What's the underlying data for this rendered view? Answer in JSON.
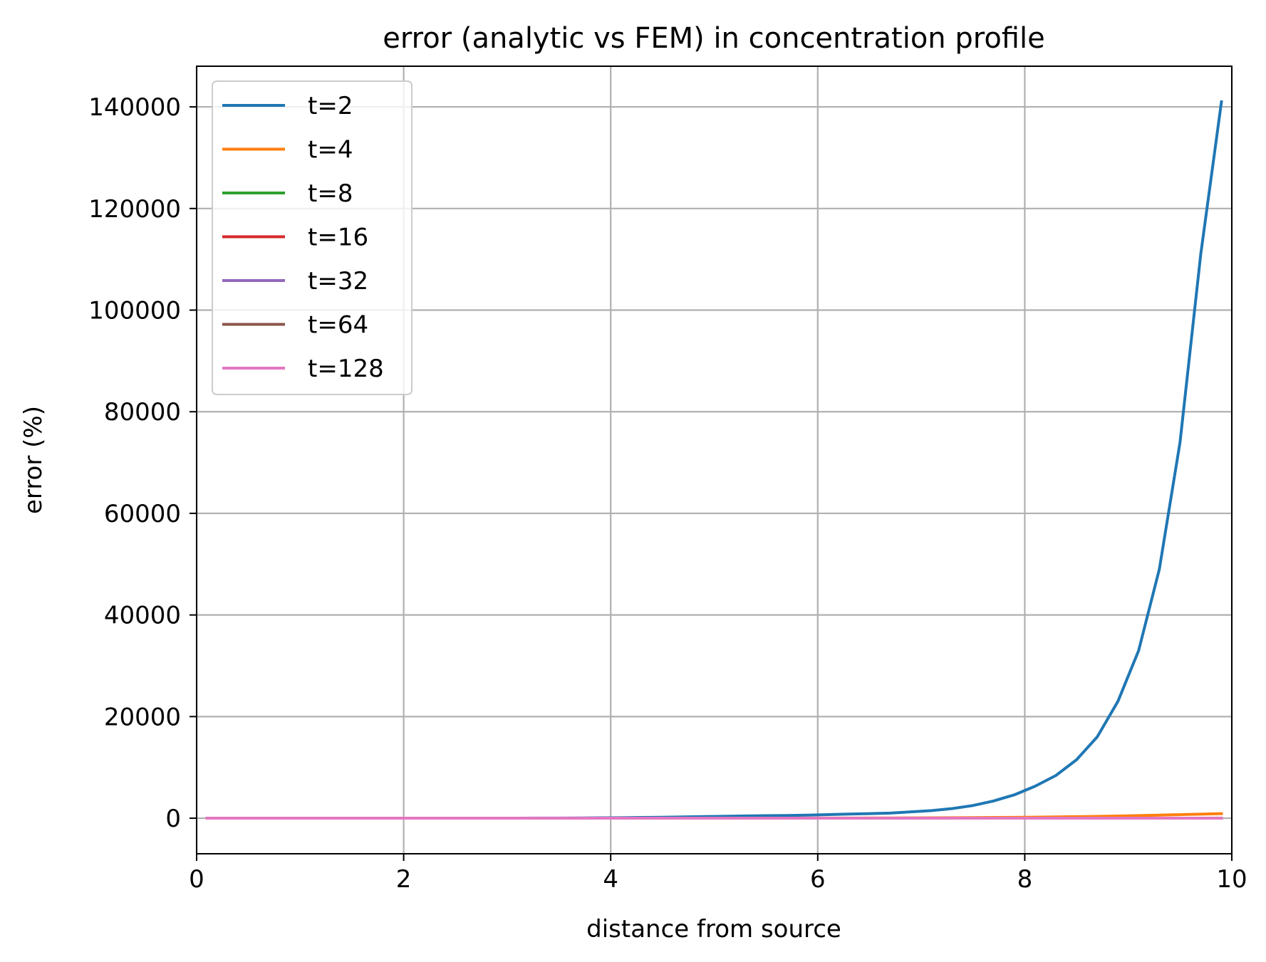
{
  "chart_data": {
    "type": "line",
    "title": "error (analytic vs FEM) in concentration profile",
    "xlabel": "distance from source",
    "ylabel": "error (%)",
    "xlim": [
      0,
      10
    ],
    "ylim": [
      -7000,
      148000
    ],
    "xticks": [
      "0",
      "2",
      "4",
      "6",
      "8",
      "10"
    ],
    "yticks": [
      "0",
      "20000",
      "40000",
      "60000",
      "80000",
      "100000",
      "120000",
      "140000"
    ],
    "grid": true,
    "legend_position": "upper-left",
    "x": [
      0.1,
      0.3,
      0.5,
      0.7,
      0.9,
      1.1,
      1.3,
      1.5,
      1.7,
      1.9,
      2.1,
      2.3,
      2.5,
      2.7,
      2.9,
      3.1,
      3.3,
      3.5,
      3.7,
      3.9,
      4.1,
      4.3,
      4.5,
      4.7,
      4.9,
      5.1,
      5.3,
      5.5,
      5.7,
      5.9,
      6.1,
      6.3,
      6.5,
      6.7,
      6.9,
      7.1,
      7.3,
      7.5,
      7.7,
      7.9,
      8.1,
      8.3,
      8.5,
      8.7,
      8.9,
      9.1,
      9.3,
      9.5,
      9.7,
      9.9
    ],
    "series": [
      {
        "name": "t=2",
        "color": "#1f77b4",
        "values": [
          0,
          0,
          0,
          0,
          0,
          0,
          0,
          0,
          1,
          1,
          2,
          3,
          5,
          7,
          10,
          15,
          22,
          33,
          48,
          70,
          100,
          140,
          190,
          250,
          320,
          380,
          440,
          490,
          540,
          600,
          700,
          820,
          900,
          1000,
          1250,
          1500,
          1900,
          2500,
          3400,
          4600,
          6300,
          8400,
          11500,
          16000,
          23000,
          33000,
          49000,
          74000,
          111000,
          141000
        ]
      },
      {
        "name": "t=4",
        "color": "#ff7f0e",
        "values": [
          0,
          0,
          0,
          0,
          0,
          0,
          0,
          0,
          0,
          0,
          0,
          0,
          0,
          0,
          0,
          0,
          0,
          1,
          1,
          1,
          2,
          2,
          3,
          4,
          5,
          6,
          8,
          10,
          13,
          17,
          22,
          28,
          35,
          45,
          57,
          72,
          90,
          112,
          140,
          170,
          205,
          250,
          300,
          360,
          430,
          510,
          600,
          700,
          800,
          900
        ]
      },
      {
        "name": "t=8",
        "color": "#2ca02c",
        "values": [
          0,
          0,
          0,
          0,
          0,
          0,
          0,
          0,
          0,
          0,
          0,
          0,
          0,
          0,
          0,
          0,
          0,
          0,
          0,
          0,
          0,
          0,
          0,
          0,
          0,
          0,
          0,
          0,
          0,
          0,
          0,
          0,
          0,
          1,
          1,
          1,
          1,
          2,
          2,
          3,
          3,
          4,
          5,
          6,
          7,
          9,
          11,
          13,
          16,
          20
        ]
      },
      {
        "name": "t=16",
        "color": "#d62728",
        "values": [
          0,
          0,
          0,
          0,
          0,
          0,
          0,
          0,
          0,
          0,
          0,
          0,
          0,
          0,
          0,
          0,
          0,
          0,
          0,
          0,
          0,
          0,
          0,
          0,
          0,
          0,
          0,
          0,
          0,
          0,
          0,
          0,
          0,
          0,
          0,
          0,
          0,
          0,
          0,
          0,
          0,
          0,
          1,
          1,
          1,
          1,
          1,
          2,
          2,
          2
        ]
      },
      {
        "name": "t=32",
        "color": "#9467bd",
        "values": [
          0,
          0,
          0,
          0,
          0,
          0,
          0,
          0,
          0,
          0,
          0,
          0,
          0,
          0,
          0,
          0,
          0,
          0,
          0,
          0,
          0,
          0,
          0,
          0,
          0,
          0,
          0,
          0,
          0,
          0,
          0,
          0,
          0,
          0,
          0,
          0,
          0,
          0,
          0,
          0,
          0,
          0,
          0,
          0,
          0,
          0,
          0,
          0,
          0,
          1
        ]
      },
      {
        "name": "t=64",
        "color": "#8c564b",
        "values": [
          0,
          0,
          0,
          0,
          0,
          0,
          0,
          0,
          0,
          0,
          0,
          0,
          0,
          0,
          0,
          0,
          0,
          0,
          0,
          0,
          0,
          0,
          0,
          0,
          0,
          0,
          0,
          0,
          0,
          0,
          0,
          0,
          0,
          0,
          0,
          0,
          0,
          0,
          0,
          0,
          0,
          0,
          0,
          0,
          0,
          0,
          0,
          0,
          0,
          0
        ]
      },
      {
        "name": "t=128",
        "color": "#e377c2",
        "values": [
          0,
          0,
          0,
          0,
          0,
          0,
          0,
          0,
          0,
          0,
          0,
          0,
          0,
          0,
          0,
          0,
          0,
          0,
          0,
          0,
          0,
          0,
          0,
          0,
          0,
          0,
          0,
          0,
          0,
          0,
          0,
          0,
          0,
          0,
          0,
          0,
          0,
          0,
          0,
          0,
          0,
          0,
          0,
          0,
          0,
          0,
          0,
          0,
          0,
          0
        ]
      }
    ]
  }
}
